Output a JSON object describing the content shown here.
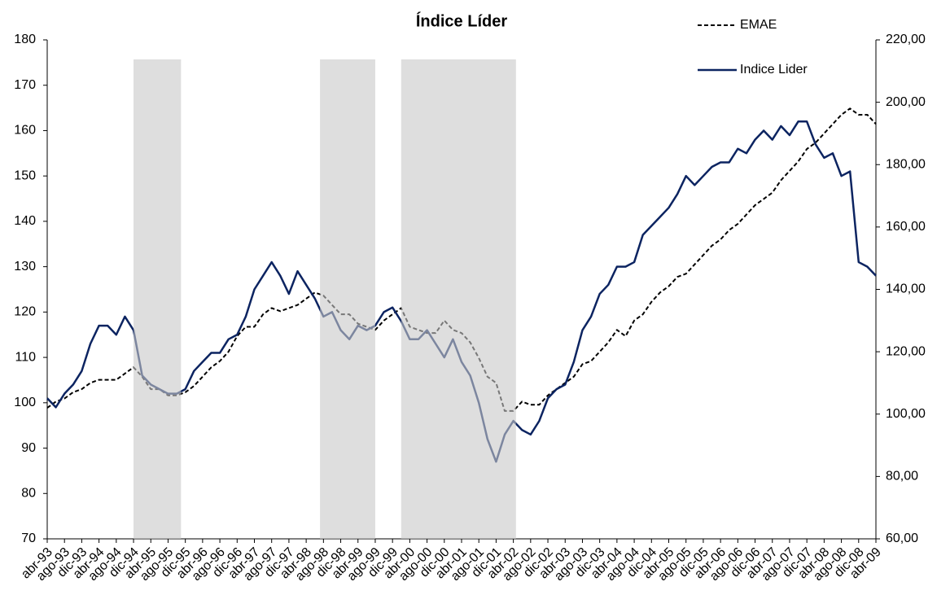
{
  "chart_data": {
    "type": "line",
    "title": "Índice Líder",
    "categories": [
      "abr-93",
      null,
      "ago-93",
      null,
      "dic-93",
      null,
      "abr-94",
      null,
      "ago-94",
      null,
      "dic-94",
      null,
      "abr-95",
      null,
      "ago-95",
      null,
      "dic-95",
      null,
      "abr-96",
      null,
      "ago-96",
      null,
      "dic-96",
      null,
      "abr-97",
      null,
      "ago-97",
      null,
      "dic-97",
      null,
      "abr-98",
      null,
      "ago-98",
      null,
      "dic-98",
      null,
      "abr-99",
      null,
      "ago-99",
      null,
      "dic-99",
      null,
      "abr-00",
      null,
      "ago-00",
      null,
      "dic-00",
      null,
      "abr-01",
      null,
      "ago-01",
      null,
      "dic-01",
      null,
      "abr-02",
      null,
      "ago-02",
      null,
      "dic-02",
      null,
      "abr-03",
      null,
      "ago-03",
      null,
      "dic-03",
      null,
      "abr-04",
      null,
      "ago-04",
      null,
      "dic-04",
      null,
      "abr-05",
      null,
      "ago-05",
      null,
      "dic-05",
      null,
      "abr-06",
      null,
      "ago-06",
      null,
      "dic-06",
      null,
      "abr-07",
      null,
      "ago-07",
      null,
      "dic-07",
      null,
      "abr-08",
      null,
      "ago-08",
      null,
      "dic-08",
      null,
      "abr-09"
    ],
    "series": [
      {
        "name": "EMAE",
        "color": "#000000",
        "dashed": true,
        "axis": "y2",
        "values": [
          102,
          104,
          105,
          107,
          108,
          110,
          111,
          111,
          111,
          113,
          115,
          112,
          108,
          108,
          106,
          106,
          107,
          109,
          112,
          115,
          117,
          120,
          125,
          128,
          128,
          132,
          134,
          133,
          134,
          135,
          137,
          139,
          138,
          135,
          132,
          132,
          129,
          128,
          127,
          130,
          132,
          134,
          128,
          127,
          126,
          126,
          130,
          127,
          126,
          123,
          118,
          112,
          110,
          101,
          101,
          104,
          103,
          103,
          106,
          108,
          110,
          112,
          116,
          117,
          120,
          123,
          127,
          125,
          130,
          132,
          136,
          139,
          141,
          144,
          145,
          148,
          151,
          154,
          156,
          159,
          161,
          164,
          167,
          169,
          171,
          175,
          178,
          181,
          185,
          187,
          190,
          193,
          196,
          198,
          196,
          196,
          193
        ]
      },
      {
        "name": "Indice Lider",
        "color": "#0c2461",
        "dashed": false,
        "axis": "y",
        "values": [
          101,
          99,
          102,
          104,
          107,
          113,
          117,
          117,
          115,
          119,
          116,
          106,
          104,
          103,
          102,
          102,
          103,
          107,
          109,
          111,
          111,
          114,
          115,
          119,
          125,
          128,
          131,
          128,
          124,
          129,
          126,
          123,
          119,
          120,
          116,
          114,
          117,
          116,
          117,
          120,
          121,
          118,
          114,
          114,
          116,
          113,
          110,
          114,
          109,
          106,
          100,
          92,
          87,
          93,
          96,
          94,
          93,
          96,
          101,
          103,
          104,
          109,
          116,
          119,
          124,
          126,
          130,
          130,
          131,
          137,
          139,
          141,
          143,
          146,
          150,
          148,
          150,
          152,
          153,
          153,
          156,
          155,
          158,
          160,
          158,
          161,
          159,
          162,
          162,
          157,
          154,
          155,
          150,
          151,
          131,
          130,
          128
        ]
      }
    ],
    "ylim": [
      70,
      180
    ],
    "yticks": [
      70,
      80,
      90,
      100,
      110,
      120,
      130,
      140,
      150,
      160,
      170,
      180
    ],
    "y2lim": [
      60,
      220
    ],
    "y2ticks": [
      {
        "value": 60,
        "label": "60,00"
      },
      {
        "value": 80,
        "label": "80,00"
      },
      {
        "value": 100,
        "label": "100,00"
      },
      {
        "value": 120,
        "label": "120,00"
      },
      {
        "value": 140,
        "label": "140,00"
      },
      {
        "value": 160,
        "label": "160,00"
      },
      {
        "value": 180,
        "label": "180,00"
      },
      {
        "value": 200,
        "label": "200,00"
      },
      {
        "value": 220,
        "label": "220,00"
      }
    ],
    "shaded_ranges": [
      [
        10,
        15.5
      ],
      [
        31.6,
        38
      ],
      [
        41,
        54.3
      ]
    ],
    "legend": "top-right",
    "grid": false
  }
}
